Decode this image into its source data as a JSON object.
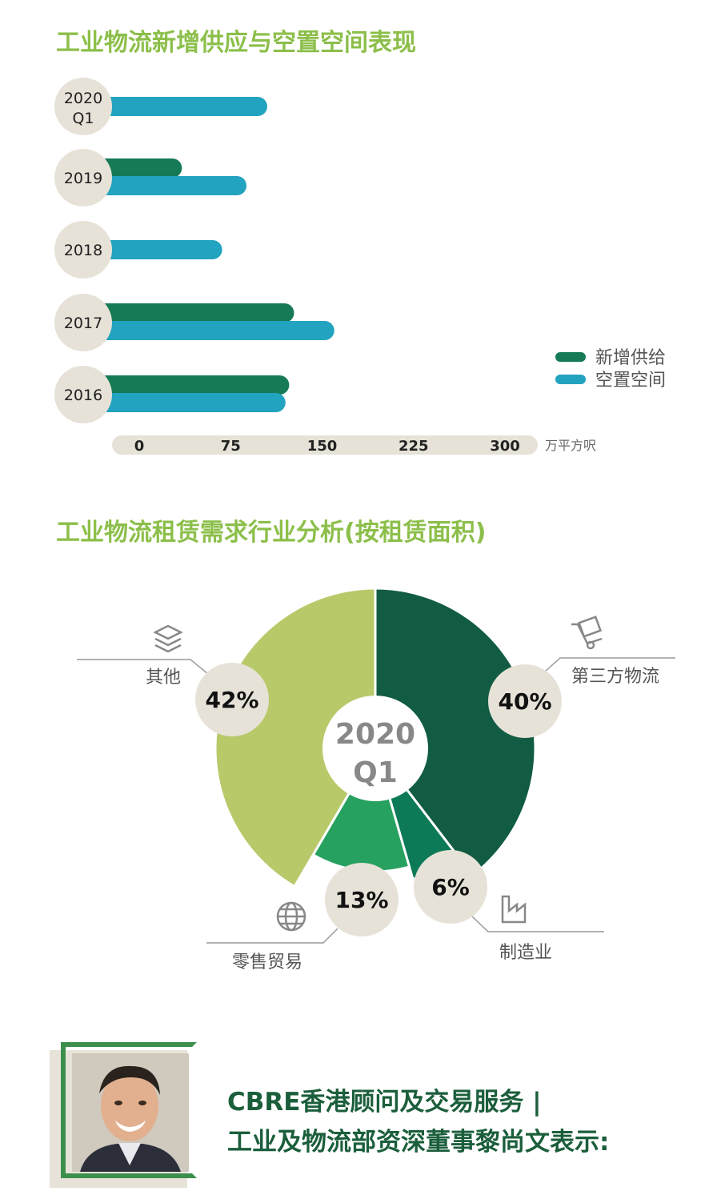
{
  "bar_title": "工业物流新增供应与空置空间表现",
  "pie_title": "工业物流租赁需求行业分析(按租赁面积)",
  "colors": {
    "title_green": "#8cbf4a",
    "new_supply": "#157a55",
    "vacant": "#22a3bf",
    "label_circle": "#e7e2d8",
    "pie_third_party": "#115c43",
    "pie_manufacturing": "#0c7a57",
    "pie_retail": "#27a15f",
    "pie_other": "#b8c96a"
  },
  "chart_data": [
    {
      "type": "bar",
      "orientation": "horizontal",
      "title": "工业物流新增供应与空置空间表现",
      "categories": [
        "2020 Q1",
        "2019",
        "2018",
        "2017",
        "2016"
      ],
      "series": [
        {
          "name": "新增供给",
          "values": [
            0,
            35,
            0,
            127,
            123
          ]
        },
        {
          "name": "空置空间",
          "values": [
            105,
            88,
            68,
            160,
            120
          ]
        }
      ],
      "xunit": "万平方呎",
      "xticks": [
        "0",
        "75",
        "150",
        "225",
        "300"
      ],
      "xlim": [
        0,
        300
      ],
      "legend": "right"
    },
    {
      "type": "pie",
      "title": "工业物流租赁需求行业分析(按租赁面积)",
      "center_label": [
        "2020",
        "Q1"
      ],
      "slices": [
        {
          "label": "第三方物流",
          "value": 40,
          "text": "40%"
        },
        {
          "label": "制造业",
          "value": 6,
          "text": "6%"
        },
        {
          "label": "零售贸易",
          "value": 13,
          "text": "13%"
        },
        {
          "label": "其他",
          "value": 42,
          "text": "42%"
        }
      ]
    }
  ],
  "quote": {
    "line1": "CBRE香港顾问及交易服务 |",
    "line2": "工业及物流部资深董事黎尚文表示:"
  }
}
